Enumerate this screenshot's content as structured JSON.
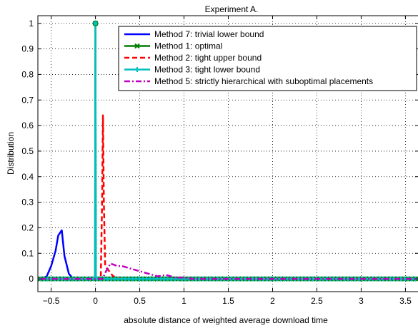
{
  "chart_data": {
    "type": "line",
    "title": "Experiment A.",
    "xlabel": "absolute distance of weighted average download time",
    "ylabel": "Distribution",
    "xlim": [
      -0.65,
      3.65
    ],
    "ylim": [
      -0.05,
      1.03
    ],
    "grid": true,
    "legend": "top-right",
    "x_ticks": [
      -0.5,
      0,
      0.5,
      1,
      1.5,
      2,
      2.5,
      3,
      3.5
    ],
    "x_tick_labels": [
      "−0.5",
      "0",
      "0.5",
      "1",
      "1.5",
      "2",
      "2.5",
      "3",
      "3.5"
    ],
    "y_ticks": [
      0,
      0.1,
      0.2,
      0.3,
      0.4,
      0.5,
      0.6,
      0.7,
      0.8,
      0.9,
      1
    ],
    "y_tick_labels": [
      "0",
      "0.1",
      "0.2",
      "0.3",
      "0.4",
      "0.5",
      "0.6",
      "0.7",
      "0.8",
      "0.9",
      "1"
    ],
    "series": [
      {
        "name": "Method 7: trivial lower bound",
        "color": "#0000ff",
        "style": "solid",
        "marker": "none",
        "x": [
          -0.62,
          -0.55,
          -0.5,
          -0.45,
          -0.42,
          -0.4,
          -0.38,
          -0.35,
          -0.3,
          -0.25,
          -0.2,
          3.65
        ],
        "y": [
          0,
          0.01,
          0.05,
          0.11,
          0.17,
          0.18,
          0.19,
          0.09,
          0.02,
          0,
          0,
          0
        ]
      },
      {
        "name": "Method 1: optimal",
        "color": "#007f00",
        "style": "solid",
        "marker": "x",
        "x": [
          -0.62,
          -0.005,
          0,
          0.005,
          3.65
        ],
        "y": [
          0,
          0,
          1,
          0,
          0
        ]
      },
      {
        "name": "Method 2: tight upper bound",
        "color": "#ff0000",
        "style": "dashed",
        "marker": "none",
        "x": [
          -0.62,
          0.06,
          0.075,
          0.085,
          0.095,
          0.11,
          0.2,
          0.3,
          3.65
        ],
        "y": [
          0,
          0,
          0.3,
          0.64,
          0.3,
          0.05,
          0.01,
          0,
          0
        ]
      },
      {
        "name": "Method 3: tight lower bound",
        "color": "#00bfbf",
        "style": "solid",
        "marker": "+",
        "x": [
          -0.62,
          -0.005,
          0,
          0.005,
          3.65
        ],
        "y": [
          0,
          0,
          1,
          0,
          0
        ]
      },
      {
        "name": "Method 5: strictly hierarchical with suboptimal placements",
        "color": "#bf00bf",
        "style": "dashdot",
        "marker": "none",
        "x": [
          -0.62,
          0.08,
          0.12,
          0.17,
          0.25,
          0.3,
          0.4,
          0.5,
          0.6,
          0.7,
          0.8,
          0.9,
          1.0,
          1.1,
          1.5,
          3.65
        ],
        "y": [
          0,
          0,
          0.03,
          0.06,
          0.05,
          0.05,
          0.04,
          0.03,
          0.02,
          0.01,
          0.015,
          0.005,
          0.005,
          0,
          0,
          0
        ]
      }
    ]
  }
}
